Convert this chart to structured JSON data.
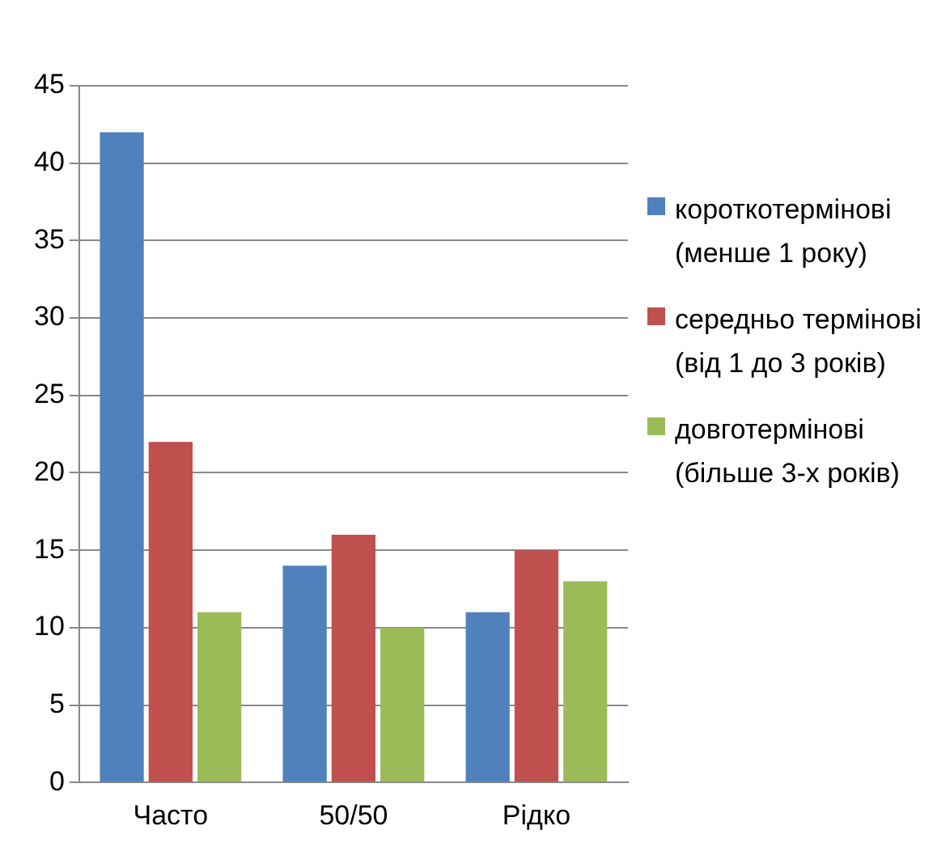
{
  "chart_data": {
    "type": "bar",
    "categories": [
      "Часто",
      "50/50",
      "Рідко"
    ],
    "series": [
      {
        "name": "короткотермінові (менше 1 року)",
        "color": "#4f81bd",
        "values": [
          42,
          14,
          11
        ]
      },
      {
        "name": "середньо термінові (від 1 до 3 років)",
        "color": "#c0504d",
        "values": [
          22,
          16,
          15
        ]
      },
      {
        "name": "довготермінові (більше 3-х років)",
        "color": "#9bbb59",
        "values": [
          11,
          10,
          13
        ]
      }
    ],
    "ylim": [
      0,
      45
    ],
    "yticks": [
      0,
      5,
      10,
      15,
      20,
      25,
      30,
      35,
      40,
      45
    ],
    "grid": "y",
    "legend": "right"
  }
}
